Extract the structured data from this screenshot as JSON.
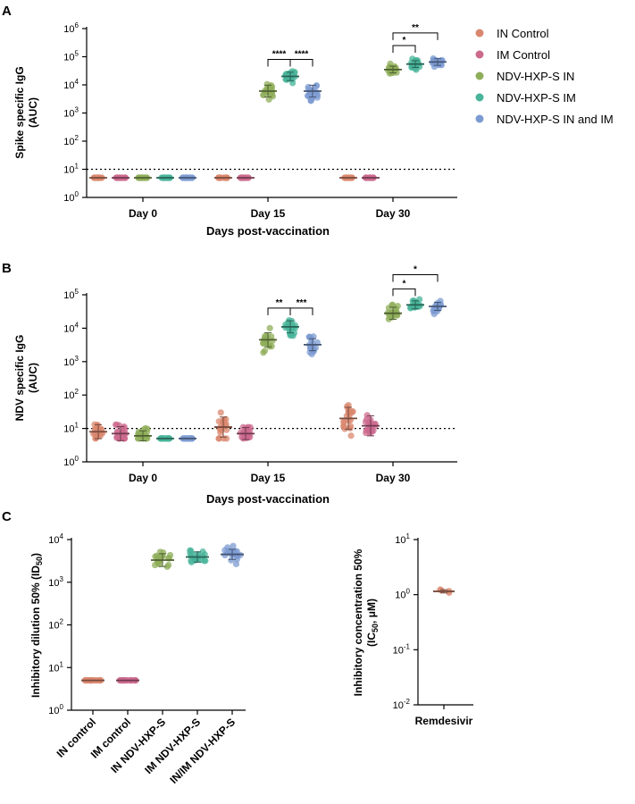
{
  "legend": [
    {
      "name": "IN Control",
      "color": "#d9876e"
    },
    {
      "name": "IM Control",
      "color": "#cc6a8e"
    },
    {
      "name": "NDV-HXP-S IN",
      "color": "#8fae5a"
    },
    {
      "name": "NDV-HXP-S IM",
      "color": "#48b49a"
    },
    {
      "name": "NDV-HXP-S IN and IM",
      "color": "#7c9bd1"
    }
  ],
  "chart_data": [
    {
      "id": "A",
      "panel_label": "A",
      "type": "scatter",
      "scale": "log10",
      "ylabel": [
        "Spike specific IgG",
        "(AUC)"
      ],
      "xlabel": "Days post-vaccination",
      "ylim": [
        1,
        1000000
      ],
      "yticks": [
        {
          "exp": 0,
          "label": "10",
          "sup": "0"
        },
        {
          "exp": 1,
          "label": "10",
          "sup": "1"
        },
        {
          "exp": 2,
          "label": "10",
          "sup": "2"
        },
        {
          "exp": 3,
          "label": "10",
          "sup": "3"
        },
        {
          "exp": 4,
          "label": "10",
          "sup": "4"
        },
        {
          "exp": 5,
          "label": "10",
          "sup": "5"
        },
        {
          "exp": 6,
          "label": "10",
          "sup": "6"
        }
      ],
      "categories": [
        "Day 0",
        "Day 15",
        "Day 30"
      ],
      "limit_of_detection": 10,
      "groups": [
        {
          "cat": 0,
          "series": 0,
          "mean": 5,
          "spread": 0
        },
        {
          "cat": 0,
          "series": 1,
          "mean": 5,
          "spread": 0
        },
        {
          "cat": 0,
          "series": 2,
          "mean": 5,
          "spread": 0
        },
        {
          "cat": 0,
          "series": 3,
          "mean": 5,
          "spread": 0
        },
        {
          "cat": 0,
          "series": 4,
          "mean": 5,
          "spread": 0
        },
        {
          "cat": 1,
          "series": 0,
          "mean": 5,
          "spread": 0
        },
        {
          "cat": 1,
          "series": 1,
          "mean": 5,
          "spread": 0
        },
        {
          "cat": 1,
          "series": 2,
          "mean": 6000,
          "spread": 0.35
        },
        {
          "cat": 1,
          "series": 3,
          "mean": 20000,
          "spread": 0.25
        },
        {
          "cat": 1,
          "series": 4,
          "mean": 6000,
          "spread": 0.35
        },
        {
          "cat": 2,
          "series": 0,
          "mean": 5,
          "spread": 0
        },
        {
          "cat": 2,
          "series": 1,
          "mean": 5,
          "spread": 0
        },
        {
          "cat": 2,
          "series": 2,
          "mean": 35000,
          "spread": 0.2
        },
        {
          "cat": 2,
          "series": 3,
          "mean": 55000,
          "spread": 0.2
        },
        {
          "cat": 2,
          "series": 4,
          "mean": 65000,
          "spread": 0.2
        }
      ],
      "significance": [
        {
          "label": "****",
          "cat": 1,
          "from": 2,
          "to": 3,
          "y": 80000
        },
        {
          "label": "****",
          "cat": 1,
          "from": 3,
          "to": 4,
          "y": 80000
        },
        {
          "label": "*",
          "cat": 2,
          "from": 2,
          "to": 3,
          "y": 250000
        },
        {
          "label": "**",
          "cat": 2,
          "from": 2,
          "to": 4,
          "y": 700000
        }
      ]
    },
    {
      "id": "B",
      "panel_label": "B",
      "type": "scatter",
      "scale": "log10",
      "ylabel": [
        "NDV specific IgG",
        "(AUC)"
      ],
      "xlabel": "Days post-vaccination",
      "ylim": [
        1,
        100000
      ],
      "yticks": [
        {
          "exp": 0,
          "label": "10",
          "sup": "0"
        },
        {
          "exp": 1,
          "label": "10",
          "sup": "1"
        },
        {
          "exp": 2,
          "label": "10",
          "sup": "2"
        },
        {
          "exp": 3,
          "label": "10",
          "sup": "3"
        },
        {
          "exp": 4,
          "label": "10",
          "sup": "4"
        },
        {
          "exp": 5,
          "label": "10",
          "sup": "5"
        }
      ],
      "categories": [
        "Day 0",
        "Day 15",
        "Day 30"
      ],
      "limit_of_detection": 10,
      "groups": [
        {
          "cat": 0,
          "series": 0,
          "mean": 8,
          "spread": 0.35
        },
        {
          "cat": 0,
          "series": 1,
          "mean": 7,
          "spread": 0.35
        },
        {
          "cat": 0,
          "series": 2,
          "mean": 6,
          "spread": 0.25
        },
        {
          "cat": 0,
          "series": 3,
          "mean": 5,
          "spread": 0
        },
        {
          "cat": 0,
          "series": 4,
          "mean": 5,
          "spread": 0
        },
        {
          "cat": 1,
          "series": 0,
          "mean": 11,
          "spread": 0.5
        },
        {
          "cat": 1,
          "series": 1,
          "mean": 7,
          "spread": 0.3
        },
        {
          "cat": 1,
          "series": 2,
          "mean": 4500,
          "spread": 0.35
        },
        {
          "cat": 1,
          "series": 3,
          "mean": 11000,
          "spread": 0.3
        },
        {
          "cat": 1,
          "series": 4,
          "mean": 3200,
          "spread": 0.3
        },
        {
          "cat": 2,
          "series": 0,
          "mean": 20,
          "spread": 0.55
        },
        {
          "cat": 2,
          "series": 1,
          "mean": 12,
          "spread": 0.5
        },
        {
          "cat": 2,
          "series": 2,
          "mean": 28000,
          "spread": 0.3
        },
        {
          "cat": 2,
          "series": 3,
          "mean": 50000,
          "spread": 0.2
        },
        {
          "cat": 2,
          "series": 4,
          "mean": 45000,
          "spread": 0.2
        }
      ],
      "significance": [
        {
          "label": "**",
          "cat": 1,
          "from": 2,
          "to": 3,
          "y": 40000
        },
        {
          "label": "***",
          "cat": 1,
          "from": 3,
          "to": 4,
          "y": 40000
        },
        {
          "label": "*",
          "cat": 2,
          "from": 2,
          "to": 3,
          "y": 150000
        },
        {
          "label": "*",
          "cat": 2,
          "from": 2,
          "to": 4,
          "y": 400000
        }
      ]
    },
    {
      "id": "C1",
      "panel_label": "C",
      "type": "scatter",
      "scale": "log10",
      "ylabel": [
        "Inhibitory dilution 50% (ID",
        "50",
        ")"
      ],
      "ylim": [
        1,
        10000
      ],
      "yticks": [
        {
          "exp": 0,
          "label": "10",
          "sup": "0"
        },
        {
          "exp": 1,
          "label": "10",
          "sup": "1"
        },
        {
          "exp": 2,
          "label": "10",
          "sup": "2"
        },
        {
          "exp": 3,
          "label": "10",
          "sup": "3"
        },
        {
          "exp": 4,
          "label": "10",
          "sup": "4"
        }
      ],
      "categories": [
        "IN control",
        "IM control",
        "IN NDV-HXP-S",
        "IM NDV-HXP-S",
        "IN/IM NDV-HXP-S"
      ],
      "groups": [
        {
          "cat": 0,
          "series": 0,
          "mean": 5,
          "spread": 0
        },
        {
          "cat": 1,
          "series": 1,
          "mean": 5,
          "spread": 0
        },
        {
          "cat": 2,
          "series": 2,
          "mean": 3300,
          "spread": 0.25
        },
        {
          "cat": 3,
          "series": 3,
          "mean": 3900,
          "spread": 0.2
        },
        {
          "cat": 4,
          "series": 4,
          "mean": 4500,
          "spread": 0.2
        }
      ]
    },
    {
      "id": "C2",
      "type": "scatter",
      "scale": "log10",
      "ylabel": [
        "Inhibitory concentration 50%",
        "(IC",
        ")"
      ],
      "ylabel_sub": "50",
      "ylabel_unit": ", μM",
      "ylim": [
        0.01,
        10
      ],
      "yticks": [
        {
          "exp": -2,
          "label": "10",
          "sup": "-2"
        },
        {
          "exp": -1,
          "label": "10",
          "sup": "-1"
        },
        {
          "exp": 0,
          "label": "10",
          "sup": "0"
        },
        {
          "exp": 1,
          "label": "10",
          "sup": "1"
        }
      ],
      "categories": [
        "Remdesivir"
      ],
      "groups": [
        {
          "cat": 0,
          "series": 0,
          "mean": 1.15,
          "spread": 0.05
        }
      ]
    }
  ]
}
